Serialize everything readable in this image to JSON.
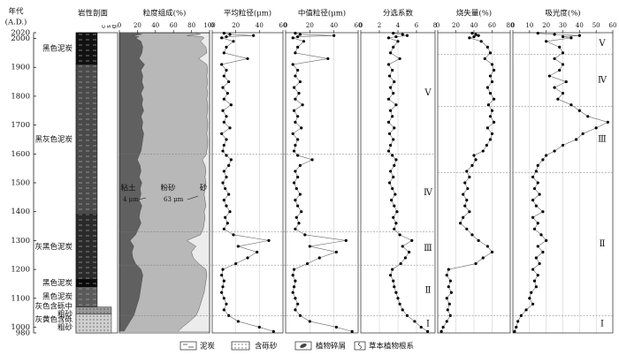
{
  "header": {
    "age_title": "年代",
    "age_unit": "(A.D.)"
  },
  "age": {
    "ylim": [
      980,
      2020
    ],
    "yticks": [
      2020,
      2000,
      1900,
      1800,
      1700,
      1600,
      1500,
      1400,
      1300,
      1200,
      1100,
      1000,
      980
    ],
    "values": [
      2018,
      2014,
      2010,
      2006,
      2002,
      1990,
      1970,
      1950,
      1930,
      1910,
      1890,
      1870,
      1850,
      1830,
      1810,
      1790,
      1770,
      1750,
      1730,
      1710,
      1690,
      1670,
      1650,
      1630,
      1610,
      1595,
      1580,
      1560,
      1540,
      1520,
      1500,
      1480,
      1460,
      1440,
      1420,
      1400,
      1380,
      1360,
      1340,
      1320,
      1300,
      1280,
      1260,
      1240,
      1220,
      1200,
      1180,
      1160,
      1140,
      1120,
      1100,
      1080,
      1060,
      1040,
      1020,
      1000,
      985
    ]
  },
  "chart_data": [
    {
      "type": "lithology",
      "title": "岩性剖面",
      "grain_labels": [
        "c",
        "s",
        "g"
      ],
      "layers": [
        {
          "label": [
            "黑色泥炭"
          ],
          "top": 2020,
          "bottom": 1910,
          "color": "#111111"
        },
        {
          "label": [
            "黑灰色泥炭"
          ],
          "top": 1910,
          "bottom": 1390,
          "color": "#4a4a4a"
        },
        {
          "label": [
            "灰黑色泥炭"
          ],
          "top": 1390,
          "bottom": 1165,
          "color": "#2a2a2a"
        },
        {
          "label": [
            "黑色泥炭"
          ],
          "top": 1165,
          "bottom": 1140,
          "color": "#0a0a0a"
        },
        {
          "label": [
            "黑色泥炭"
          ],
          "top": 1140,
          "bottom": 1070,
          "color": "#5a5a5a"
        },
        {
          "label": [
            "灰色含砾中",
            "粗砂"
          ],
          "top": 1070,
          "bottom": 1045,
          "color": "#9a9a9a"
        },
        {
          "label": [
            "灰黄色含砾",
            "粗砂"
          ],
          "top": 1045,
          "bottom": 980,
          "color": "#d0d0d0"
        }
      ]
    },
    {
      "type": "stacked_area",
      "title": "粒度组成(%)",
      "xlim": [
        0,
        100
      ],
      "xticks": [
        0,
        20,
        40,
        60,
        80,
        100
      ],
      "annotations": [
        "4 μm",
        "63 μm"
      ],
      "series": [
        {
          "name": "粘土",
          "color": "#606060",
          "values": [
            20,
            25,
            15,
            22,
            18,
            24,
            26,
            25,
            22,
            28,
            24,
            26,
            25,
            27,
            24,
            26,
            25,
            27,
            24,
            26,
            25,
            27,
            26,
            25,
            24,
            22,
            20,
            23,
            24,
            22,
            25,
            23,
            24,
            22,
            25,
            23,
            22,
            24,
            21,
            18,
            12,
            16,
            14,
            15,
            18,
            24,
            26,
            25,
            24,
            23,
            22,
            20,
            18,
            16,
            12,
            8,
            5
          ]
        },
        {
          "name": "粉砂",
          "color": "#b8b8b8",
          "values": [
            65,
            65,
            60,
            70,
            76,
            66,
            70,
            72,
            66,
            69,
            74,
            71,
            73,
            70,
            74,
            71,
            73,
            71,
            73,
            72,
            73,
            70,
            72,
            73,
            73,
            74,
            72,
            72,
            72,
            73,
            71,
            72,
            70,
            73,
            71,
            71,
            73,
            70,
            72,
            72,
            63,
            69,
            66,
            67,
            70,
            72,
            71,
            71,
            71,
            71,
            70,
            70,
            70,
            69,
            66,
            62,
            60
          ]
        },
        {
          "name": "砂",
          "color": "#ececec",
          "values": [
            15,
            10,
            25,
            8,
            6,
            10,
            4,
            3,
            12,
            3,
            2,
            3,
            2,
            3,
            2,
            3,
            2,
            2,
            3,
            2,
            2,
            3,
            2,
            2,
            3,
            4,
            8,
            5,
            4,
            5,
            4,
            5,
            6,
            5,
            4,
            6,
            5,
            6,
            7,
            10,
            25,
            15,
            20,
            18,
            12,
            4,
            3,
            4,
            5,
            6,
            8,
            10,
            12,
            15,
            22,
            30,
            35
          ]
        }
      ]
    },
    {
      "type": "line",
      "title": "平均粒径(μm)",
      "xlim": [
        0,
        60
      ],
      "xticks": [
        0,
        20,
        40,
        60
      ],
      "grid": true,
      "color": "#000000",
      "values": [
        10,
        15,
        35,
        12,
        8,
        18,
        12,
        10,
        30,
        8,
        12,
        10,
        14,
        9,
        13,
        10,
        16,
        9,
        12,
        10,
        15,
        8,
        12,
        10,
        9,
        12,
        16,
        14,
        10,
        12,
        9,
        11,
        14,
        10,
        12,
        15,
        11,
        13,
        10,
        18,
        48,
        22,
        38,
        30,
        20,
        9,
        8,
        10,
        9,
        8,
        10,
        12,
        10,
        14,
        22,
        40,
        52
      ]
    },
    {
      "type": "line",
      "title": "中值粒径(μm)",
      "xlim": [
        0,
        60
      ],
      "xticks": [
        0,
        20,
        40,
        60
      ],
      "grid": true,
      "color": "#000000",
      "values": [
        8,
        12,
        40,
        10,
        6,
        15,
        10,
        8,
        35,
        6,
        10,
        8,
        12,
        7,
        11,
        8,
        14,
        7,
        10,
        8,
        13,
        6,
        10,
        8,
        7,
        10,
        22,
        12,
        8,
        10,
        7,
        9,
        12,
        8,
        10,
        13,
        9,
        11,
        8,
        16,
        50,
        20,
        42,
        28,
        18,
        7,
        6,
        8,
        7,
        6,
        8,
        10,
        8,
        12,
        20,
        42,
        55
      ]
    },
    {
      "type": "line",
      "title": "分选系数",
      "xlim": [
        0,
        8
      ],
      "xticks": [
        0,
        2,
        4,
        6,
        8
      ],
      "grid": true,
      "color": "#000000",
      "values": [
        3.5,
        4.5,
        5,
        3.8,
        3,
        4,
        3.5,
        3.2,
        4.2,
        3,
        3.4,
        3.1,
        3.6,
        3.2,
        3.5,
        3,
        3.8,
        3.2,
        3.4,
        3,
        3.6,
        3.1,
        3.5,
        3.2,
        3,
        3.4,
        3.8,
        3.6,
        3.2,
        3.5,
        3.1,
        3.4,
        3.7,
        3.3,
        3.6,
        3.9,
        3.5,
        3.8,
        3.6,
        4.2,
        5.5,
        4.5,
        5.2,
        4.8,
        4.3,
        3.4,
        3.2,
        3.5,
        3.6,
        3.8,
        4,
        4.2,
        4.5,
        5,
        5.8,
        6.5,
        7.2
      ]
    },
    {
      "type": "line",
      "title": "烧失量(%)",
      "xlim": [
        0,
        80
      ],
      "xticks": [
        0,
        20,
        40,
        60,
        80
      ],
      "grid": true,
      "color": "#000000",
      "values": [
        38,
        42,
        45,
        40,
        35,
        48,
        55,
        58,
        52,
        60,
        62,
        58,
        60,
        55,
        58,
        62,
        56,
        60,
        58,
        62,
        55,
        60,
        58,
        54,
        50,
        40,
        42,
        38,
        32,
        35,
        30,
        33,
        28,
        32,
        30,
        35,
        28,
        25,
        32,
        38,
        45,
        55,
        60,
        50,
        42,
        12,
        10,
        14,
        12,
        15,
        10,
        13,
        11,
        14,
        10,
        6,
        4
      ]
    },
    {
      "type": "line",
      "title": "吸光度(%)",
      "xlim": [
        0,
        60
      ],
      "xticks": [
        0,
        10,
        20,
        30,
        40,
        50,
        60
      ],
      "grid": true,
      "color": "#000000",
      "values": [
        15,
        25,
        40,
        30,
        35,
        20,
        28,
        30,
        25,
        30,
        28,
        22,
        32,
        25,
        30,
        27,
        35,
        40,
        45,
        57,
        50,
        42,
        38,
        30,
        25,
        20,
        18,
        15,
        14,
        12,
        15,
        13,
        16,
        12,
        14,
        18,
        12,
        15,
        13,
        17,
        20,
        15,
        18,
        14,
        16,
        12,
        15,
        13,
        14,
        11,
        10,
        12,
        8,
        5,
        3,
        2,
        1
      ]
    }
  ],
  "zones_left": [
    {
      "label": "Ⅴ",
      "top": 2020,
      "bottom": 1600
    },
    {
      "label": "Ⅳ",
      "top": 1600,
      "bottom": 1330
    },
    {
      "label": "Ⅲ",
      "top": 1330,
      "bottom": 1215
    },
    {
      "label": "Ⅱ",
      "top": 1215,
      "bottom": 1040
    },
    {
      "label": "Ⅰ",
      "top": 1040,
      "bottom": 980
    }
  ],
  "zones_right": [
    {
      "label": "Ⅴ",
      "top": 2020,
      "bottom": 1945
    },
    {
      "label": "Ⅳ",
      "top": 1945,
      "bottom": 1765
    },
    {
      "label": "Ⅲ",
      "top": 1765,
      "bottom": 1535
    },
    {
      "label": "Ⅱ",
      "top": 1535,
      "bottom": 1040
    },
    {
      "label": "Ⅰ",
      "top": 1040,
      "bottom": 980
    }
  ],
  "legend": [
    "泥炭",
    "含砾砂",
    "植物碎屑",
    "草本植物根系"
  ]
}
